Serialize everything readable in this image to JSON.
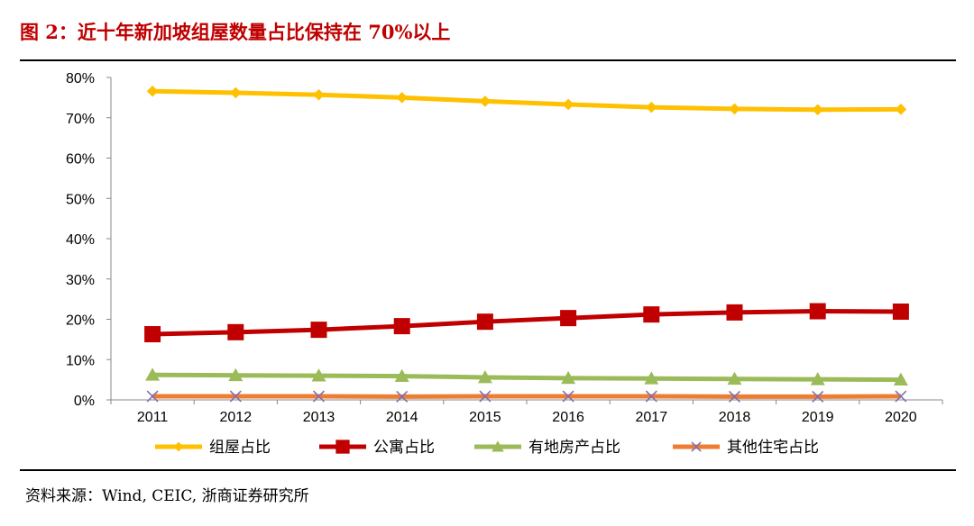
{
  "title": "图 2：近十年新加坡组屋数量占比保持在 70%以上",
  "source": "资料来源：Wind, CEIC, 浙商证券研究所",
  "chart_data": {
    "type": "line",
    "x": [
      "2011",
      "2012",
      "2013",
      "2014",
      "2015",
      "2016",
      "2017",
      "2018",
      "2019",
      "2020"
    ],
    "ylim": [
      0,
      80
    ],
    "yticks": [
      "0%",
      "10%",
      "20%",
      "30%",
      "40%",
      "50%",
      "60%",
      "70%",
      "80%"
    ],
    "grid": false,
    "legend_position": "bottom",
    "series": [
      {
        "name": "组屋占比",
        "color": "#ffc000",
        "marker": "diamond",
        "values": [
          76.6,
          76.2,
          75.7,
          75.0,
          74.1,
          73.3,
          72.6,
          72.2,
          72.0,
          72.1
        ]
      },
      {
        "name": "公寓占比",
        "color": "#c00000",
        "marker": "square",
        "values": [
          16.3,
          16.8,
          17.4,
          18.3,
          19.4,
          20.3,
          21.2,
          21.7,
          22.0,
          21.9
        ]
      },
      {
        "name": "有地房产占比",
        "color": "#9bbb59",
        "marker": "triangle",
        "values": [
          6.2,
          6.1,
          6.0,
          5.9,
          5.6,
          5.4,
          5.3,
          5.2,
          5.1,
          5.0
        ]
      },
      {
        "name": "其他住宅占比",
        "color": "#ed7d31",
        "marker": "x",
        "values": [
          0.9,
          0.9,
          0.9,
          0.8,
          0.9,
          0.9,
          0.9,
          0.8,
          0.8,
          0.9
        ]
      }
    ]
  }
}
